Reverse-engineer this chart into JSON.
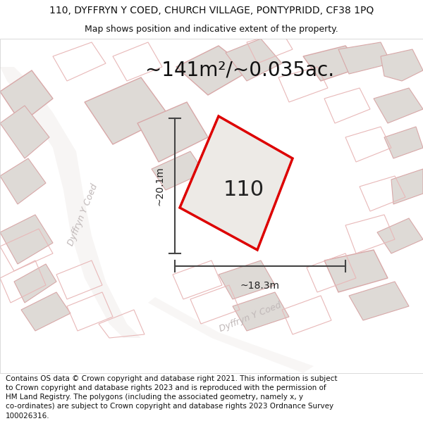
{
  "title_line1": "110, DYFFRYN Y COED, CHURCH VILLAGE, PONTYPRIDD, CF38 1PQ",
  "title_line2": "Map shows position and indicative extent of the property.",
  "area_label": "~141m²/~0.035ac.",
  "property_number": "110",
  "dim_vertical": "~20.1m",
  "dim_horizontal": "~18.3m",
  "street_name_upper": "Dyffryn Y Coed",
  "street_name_lower": "Dyffryn Y Coed",
  "footer_lines": [
    "Contains OS data © Crown copyright and database right 2021. This information is subject to Crown copyright and database rights 2023 and is reproduced with the permission of",
    "HM Land Registry. The polygons (including the associated geometry, namely x, y co-ordinates) are subject to Crown copyright and database rights 2023 Ordnance Survey",
    "100026316."
  ],
  "map_bg": "#ffffff",
  "property_fill": "#eeebe8",
  "property_outline": "#dd0000",
  "building_fill": "#dedad6",
  "building_outline_dark": "#c8b8b8",
  "building_outline_light": "#e8c8c8",
  "road_fill": "#f5f0ee",
  "street_label_color": "#c0b8b8",
  "dim_line_color": "#444444",
  "title_fontsize": 10,
  "subtitle_fontsize": 9,
  "area_fontsize": 20,
  "number_fontsize": 22,
  "dim_fontsize": 10,
  "footer_fontsize": 7.5
}
